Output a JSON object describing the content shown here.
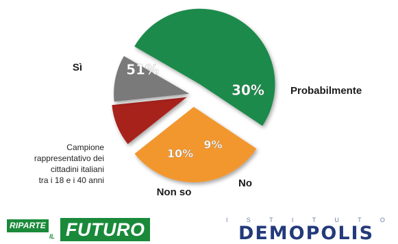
{
  "chart_data": {
    "type": "pie",
    "exploded": true,
    "slices": [
      {
        "label": "Sì",
        "value_label": "51%",
        "value": 51,
        "color": "#1f8a4c"
      },
      {
        "label": "Probabilmente",
        "value_label": "30%",
        "value": 30,
        "color": "#f2972e"
      },
      {
        "label": "No",
        "value_label": "9%",
        "value": 9,
        "color": "#a8201b"
      },
      {
        "label": "Non so",
        "value_label": "10%",
        "value": 10,
        "color": "#7a7a7a"
      }
    ]
  },
  "note": {
    "lines": [
      "Campione",
      "rappresentativo dei",
      "cittadini italiani",
      "tra i 18 e i 40 anni"
    ]
  },
  "logos": {
    "riparte": {
      "word1": "RIPARTE",
      "word2": "IL",
      "word3": "FUTURO"
    },
    "demopolis": {
      "top_letters": [
        "I",
        "S",
        "T",
        "I",
        "T",
        "U",
        "T",
        "O"
      ],
      "name": "DEMOPOLIS"
    }
  }
}
